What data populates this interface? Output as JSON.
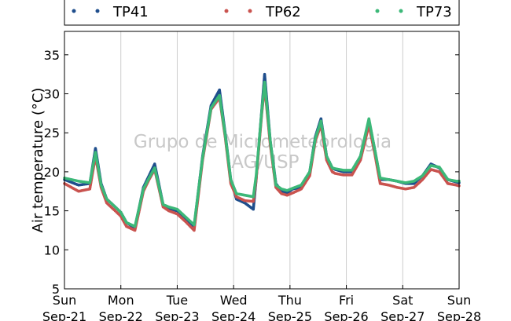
{
  "chart_data": {
    "type": "scatter",
    "ylabel": "Air temperature (°C)",
    "watermark_lines": [
      "Grupo de Micrometeorologia",
      "IAG/USP"
    ],
    "ylim": [
      5,
      38
    ],
    "yticks": [
      5,
      10,
      15,
      20,
      25,
      30,
      35
    ],
    "xlim_days": [
      0,
      7
    ],
    "xticks": [
      {
        "day": "Sun",
        "date": "Sep-21"
      },
      {
        "day": "Mon",
        "date": "Sep-22"
      },
      {
        "day": "Tue",
        "date": "Sep-23"
      },
      {
        "day": "Wed",
        "date": "Sep-24"
      },
      {
        "day": "Thu",
        "date": "Sep-25"
      },
      {
        "day": "Fri",
        "date": "Sep-26"
      },
      {
        "day": "Sat",
        "date": "Sep-27"
      },
      {
        "day": "Sun",
        "date": "Sep-28"
      }
    ],
    "grid": "vertical",
    "legend": "top",
    "series": [
      {
        "name": "TP41",
        "color": "#1f4e8c",
        "x": [
          0,
          0.25,
          0.45,
          0.55,
          0.65,
          0.75,
          0.9,
          1.0,
          1.1,
          1.25,
          1.4,
          1.5,
          1.6,
          1.75,
          1.85,
          2.0,
          2.15,
          2.3,
          2.45,
          2.6,
          2.75,
          2.85,
          2.95,
          3.05,
          3.2,
          3.35,
          3.4,
          3.5,
          3.55,
          3.65,
          3.75,
          3.85,
          3.95,
          4.05,
          4.2,
          4.35,
          4.45,
          4.55,
          4.65,
          4.75,
          4.8,
          4.95,
          5.1,
          5.25,
          5.4,
          5.5,
          5.6,
          5.75,
          5.9,
          6.05,
          6.2,
          6.35,
          6.5,
          6.65,
          6.8,
          6.95,
          7.0
        ],
        "y": [
          19.0,
          18.3,
          18.5,
          23.0,
          18.5,
          16.5,
          15.5,
          14.8,
          13.5,
          12.8,
          18.0,
          19.5,
          21.0,
          15.8,
          15.3,
          15.0,
          14.0,
          13.0,
          22.0,
          28.5,
          30.5,
          25.0,
          19.0,
          16.5,
          16.0,
          15.2,
          19.0,
          28.0,
          32.5,
          24.0,
          18.5,
          17.5,
          17.3,
          17.8,
          18.0,
          20.0,
          24.5,
          26.8,
          22.0,
          20.5,
          20.3,
          20.0,
          20.0,
          22.0,
          26.5,
          23.0,
          19.0,
          19.0,
          18.8,
          18.5,
          18.5,
          19.5,
          21.0,
          20.5,
          19.0,
          18.7,
          18.6
        ]
      },
      {
        "name": "TP62",
        "color": "#c9534f",
        "x": [
          0,
          0.25,
          0.45,
          0.55,
          0.65,
          0.75,
          0.9,
          1.0,
          1.1,
          1.25,
          1.4,
          1.5,
          1.6,
          1.75,
          1.85,
          2.0,
          2.15,
          2.3,
          2.45,
          2.6,
          2.75,
          2.85,
          2.95,
          3.05,
          3.2,
          3.35,
          3.4,
          3.5,
          3.55,
          3.65,
          3.75,
          3.85,
          3.95,
          4.05,
          4.2,
          4.35,
          4.45,
          4.55,
          4.65,
          4.75,
          4.8,
          4.95,
          5.1,
          5.25,
          5.4,
          5.5,
          5.6,
          5.75,
          5.9,
          6.05,
          6.2,
          6.35,
          6.5,
          6.65,
          6.8,
          6.95,
          7.0
        ],
        "y": [
          18.5,
          17.5,
          17.8,
          22.0,
          18.0,
          16.0,
          15.0,
          14.3,
          13.0,
          12.5,
          17.5,
          19.0,
          20.3,
          15.5,
          15.0,
          14.6,
          13.6,
          12.5,
          21.5,
          28.0,
          29.5,
          24.5,
          18.5,
          16.8,
          16.3,
          16.2,
          19.0,
          27.5,
          31.0,
          23.5,
          18.0,
          17.2,
          17.0,
          17.3,
          17.8,
          19.5,
          24.0,
          26.0,
          21.5,
          20.0,
          19.8,
          19.6,
          19.6,
          21.5,
          26.0,
          22.5,
          18.5,
          18.3,
          18.0,
          17.8,
          18.0,
          19.0,
          20.3,
          20.0,
          18.5,
          18.3,
          18.2
        ]
      },
      {
        "name": "TP73",
        "color": "#3cb878",
        "x": [
          0,
          0.25,
          0.45,
          0.55,
          0.65,
          0.75,
          0.9,
          1.0,
          1.1,
          1.25,
          1.4,
          1.5,
          1.6,
          1.75,
          1.85,
          2.0,
          2.15,
          2.3,
          2.45,
          2.6,
          2.75,
          2.85,
          2.95,
          3.05,
          3.2,
          3.35,
          3.4,
          3.5,
          3.55,
          3.65,
          3.75,
          3.85,
          3.95,
          4.05,
          4.2,
          4.35,
          4.45,
          4.55,
          4.65,
          4.75,
          4.8,
          4.95,
          5.1,
          5.25,
          5.4,
          5.5,
          5.6,
          5.75,
          5.9,
          6.05,
          6.2,
          6.35,
          6.5,
          6.65,
          6.8,
          6.95,
          7.0
        ],
        "y": [
          19.2,
          18.8,
          18.6,
          22.5,
          18.3,
          16.5,
          15.5,
          14.8,
          13.5,
          13.0,
          17.8,
          19.2,
          20.5,
          15.8,
          15.5,
          15.2,
          14.2,
          13.2,
          21.8,
          28.2,
          29.8,
          24.8,
          19.0,
          17.2,
          17.0,
          16.8,
          19.5,
          27.8,
          31.5,
          24.0,
          18.3,
          17.8,
          17.6,
          17.9,
          18.3,
          20.0,
          24.3,
          26.5,
          22.0,
          20.5,
          20.4,
          20.2,
          20.2,
          22.0,
          26.8,
          23.0,
          19.2,
          19.0,
          18.8,
          18.6,
          18.8,
          19.5,
          20.8,
          20.6,
          19.0,
          18.8,
          18.8
        ]
      }
    ]
  }
}
